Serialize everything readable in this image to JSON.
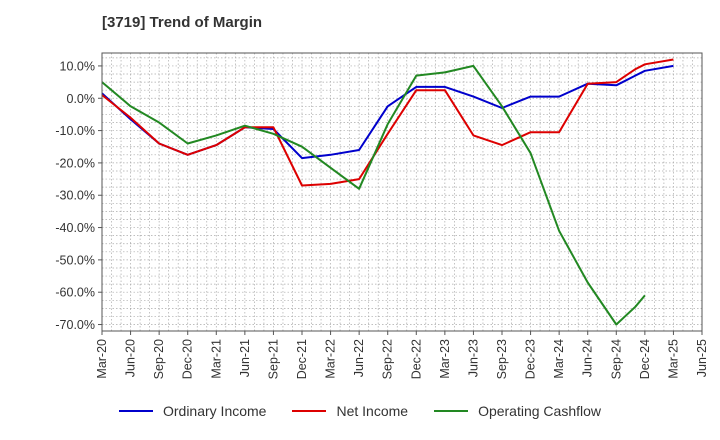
{
  "title": "[3719]  Trend of Margin",
  "colors": {
    "ordinary": "#0000cc",
    "net": "#dd0000",
    "cashflow": "#228822",
    "grid": "#999999",
    "axis": "#555555"
  },
  "chart_data": {
    "type": "line",
    "title": "[3719]  Trend of Margin",
    "x_ticks": [
      "Mar-20",
      "Jun-20",
      "Sep-20",
      "Dec-20",
      "Mar-21",
      "Jun-21",
      "Sep-21",
      "Dec-21",
      "Mar-22",
      "Jun-22",
      "Sep-22",
      "Dec-22",
      "Mar-23",
      "Jun-23",
      "Sep-23",
      "Dec-23",
      "Mar-24",
      "Jun-24",
      "Sep-24",
      "Dec-24",
      "Mar-25",
      "Jun-25"
    ],
    "y_ticks": [
      "10.0%",
      "0.0%",
      "-10.0%",
      "-20.0%",
      "-30.0%",
      "-40.0%",
      "-50.0%",
      "-60.0%",
      "-70.0%"
    ],
    "ylim": [
      -72,
      14
    ],
    "grid": true,
    "legend_position": "bottom",
    "series": [
      {
        "name": "Ordinary Income",
        "color": "#0000cc",
        "x": [
          "Mar-20",
          "Jun-20",
          "Sep-20",
          "Dec-20",
          "Mar-21",
          "Jun-21",
          "Sep-21",
          "Dec-21",
          "Mar-22",
          "Jun-22",
          "Sep-22",
          "Dec-22",
          "Mar-23",
          "Jun-23",
          "Sep-23",
          "Dec-23",
          "Mar-24",
          "Jun-24",
          "Sep-24",
          "Nov-24",
          "Dec-24",
          "Mar-25"
        ],
        "values": [
          1.5,
          -6.5,
          -14.0,
          -17.5,
          -14.5,
          -9.0,
          -9.5,
          -18.5,
          -17.5,
          -16.0,
          -2.5,
          3.5,
          3.5,
          0.5,
          -3.0,
          0.5,
          0.5,
          4.5,
          4.0,
          7.0,
          8.5,
          10.0
        ]
      },
      {
        "name": "Net Income",
        "color": "#dd0000",
        "x": [
          "Mar-20",
          "Jun-20",
          "Sep-20",
          "Dec-20",
          "Mar-21",
          "Jun-21",
          "Sep-21",
          "Dec-21",
          "Mar-22",
          "Jun-22",
          "Sep-22",
          "Dec-22",
          "Mar-23",
          "Jun-23",
          "Sep-23",
          "Dec-23",
          "Mar-24",
          "Jun-24",
          "Sep-24",
          "Nov-24",
          "Dec-24",
          "Mar-25"
        ],
        "values": [
          1.0,
          -6.0,
          -14.0,
          -17.5,
          -14.5,
          -9.0,
          -9.0,
          -27.0,
          -26.5,
          -25.0,
          -11.0,
          2.5,
          2.5,
          -11.5,
          -14.5,
          -10.5,
          -10.5,
          4.5,
          5.0,
          9.0,
          10.5,
          12.0
        ]
      },
      {
        "name": "Operating Cashflow",
        "color": "#228822",
        "x": [
          "Mar-20",
          "Jun-20",
          "Sep-20",
          "Dec-20",
          "Mar-21",
          "Jun-21",
          "Sep-21",
          "Dec-21",
          "Mar-22",
          "Jun-22",
          "Sep-22",
          "Dec-22",
          "Mar-23",
          "Jun-23",
          "Sep-23",
          "Dec-23",
          "Mar-24",
          "Jun-24",
          "Sep-24",
          "Nov-24",
          "Dec-24"
        ],
        "values": [
          5.0,
          -2.5,
          -7.5,
          -14.0,
          -11.5,
          -8.5,
          -11.0,
          -15.0,
          -21.5,
          -28.0,
          -8.0,
          7.0,
          8.0,
          10.0,
          -2.5,
          -17.0,
          -41.0,
          -57.0,
          -70.0,
          -64.5,
          -61.0
        ]
      }
    ]
  },
  "legend": {
    "ordinary": "Ordinary Income",
    "net": "Net Income",
    "cashflow": "Operating Cashflow"
  }
}
